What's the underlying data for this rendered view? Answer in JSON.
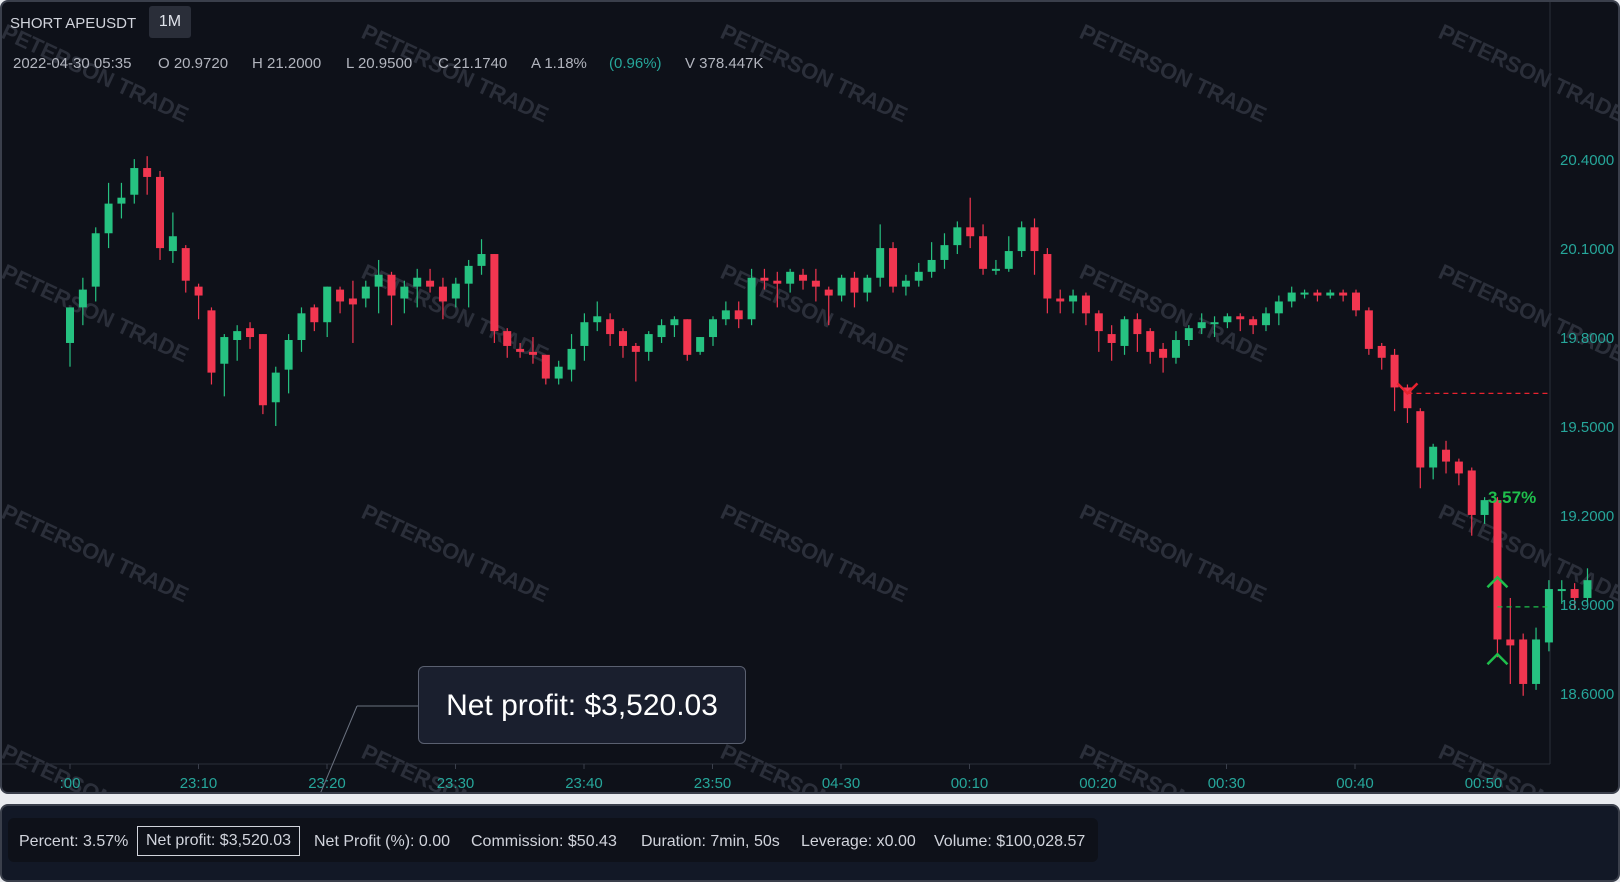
{
  "header": {
    "symbol": "SHORT APEUSDT",
    "timeframe": "1M"
  },
  "ohlc": {
    "date": "2022-04-30 05:35",
    "open": "O 20.9720",
    "high": "H 21.2000",
    "low": "L 20.9500",
    "close": "C 21.1740",
    "amplitude": "A 1.18%",
    "change": "(0.96%)",
    "volume": "V 378.447K"
  },
  "watermark": "PETERSON TRADE",
  "tooltip": {
    "label": "Net profit: $3,520.03"
  },
  "trade": {
    "entry_price": 19.61,
    "exit_price": 18.89,
    "profit_label": "3.57%",
    "entry_index": 104,
    "exit_index": 111
  },
  "stats": {
    "percent": "Percent: 3.57%",
    "net_profit": "Net profit: $3,520.03",
    "net_profit_pct": "Net Profit (%): 0.00",
    "commission": "Commission: $50.43",
    "duration": "Duration: 7min, 50s",
    "leverage": "Leverage: x0.00",
    "volume": "Volume: $100,028.57"
  },
  "colors": {
    "up": "#26c281",
    "down": "#f23650",
    "axis_text": "#26a69a",
    "background": "#0e1119",
    "entry_marker": "#e8232f",
    "exit_marker": "#1fbf4c"
  },
  "chart_data": {
    "type": "candlestick",
    "title": "SHORT APEUSDT",
    "x_ticks": [
      ":00",
      "23:10",
      "23:20",
      "23:30",
      "23:40",
      "23:50",
      "04-30",
      "00:10",
      "00:20",
      "00:30",
      "00:40",
      "00:50"
    ],
    "y_ticks": [
      "20.4000",
      "20.1000",
      "19.8000",
      "19.5000",
      "19.2000",
      "18.9000",
      "18.6000"
    ],
    "y_tick_values": [
      20.4,
      20.1,
      19.8,
      19.5,
      19.2,
      18.9,
      18.6
    ],
    "ylim": [
      18.36,
      20.93
    ],
    "candles_ohlc": [
      [
        19.78,
        19.9,
        19.75,
        19.9,
        19.7
      ],
      [
        19.9,
        19.96,
        19.87,
        20.0,
        19.84
      ],
      [
        19.97,
        20.15,
        19.95,
        20.17,
        19.92
      ],
      [
        20.15,
        20.25,
        20.12,
        20.32,
        20.1
      ],
      [
        20.25,
        20.27,
        20.23,
        20.32,
        20.2
      ],
      [
        20.28,
        20.37,
        20.27,
        20.4,
        20.25
      ],
      [
        20.37,
        20.34,
        20.33,
        20.41,
        20.28
      ],
      [
        20.34,
        20.1,
        20.08,
        20.36,
        20.06
      ],
      [
        20.09,
        20.14,
        20.08,
        20.22,
        20.05
      ],
      [
        20.1,
        19.99,
        19.98,
        20.11,
        19.95
      ],
      [
        19.97,
        19.94,
        19.91,
        19.98,
        19.86
      ],
      [
        19.89,
        19.68,
        19.66,
        19.9,
        19.64
      ],
      [
        19.71,
        19.8,
        19.68,
        19.81,
        19.6
      ],
      [
        19.79,
        19.82,
        19.76,
        19.84,
        19.72
      ],
      [
        19.83,
        19.8,
        19.78,
        19.85,
        19.76
      ],
      [
        19.81,
        19.57,
        19.55,
        19.81,
        19.54
      ],
      [
        19.58,
        19.68,
        19.56,
        19.7,
        19.5
      ],
      [
        19.69,
        19.79,
        19.68,
        19.81,
        19.61
      ],
      [
        19.79,
        19.88,
        19.78,
        19.9,
        19.75
      ],
      [
        19.9,
        19.85,
        19.83,
        19.91,
        19.82
      ],
      [
        19.85,
        19.97,
        19.84,
        19.97,
        19.8
      ],
      [
        19.96,
        19.92,
        19.9,
        19.97,
        19.88
      ],
      [
        19.93,
        19.91,
        19.89,
        19.99,
        19.78
      ],
      [
        19.93,
        19.97,
        19.92,
        19.99,
        19.9
      ],
      [
        19.97,
        20.01,
        19.96,
        20.06,
        19.88
      ],
      [
        20.01,
        19.94,
        19.87,
        20.02,
        19.84
      ],
      [
        19.93,
        19.97,
        19.92,
        19.99,
        19.88
      ],
      [
        19.97,
        20.0,
        19.96,
        20.03,
        19.9
      ],
      [
        19.99,
        19.97,
        19.96,
        20.03,
        19.95
      ],
      [
        19.97,
        19.92,
        19.88,
        20.0,
        19.86
      ],
      [
        19.93,
        19.98,
        19.92,
        20.0,
        19.9
      ],
      [
        19.98,
        20.04,
        19.96,
        20.06,
        19.9
      ],
      [
        20.04,
        20.08,
        20.03,
        20.13,
        20.01
      ],
      [
        20.08,
        19.82,
        19.8,
        20.08,
        19.78
      ],
      [
        19.82,
        19.77,
        19.74,
        19.83,
        19.73
      ],
      [
        19.76,
        19.75,
        19.74,
        19.78,
        19.73
      ],
      [
        19.75,
        19.74,
        19.73,
        19.8,
        19.71
      ],
      [
        19.74,
        19.66,
        19.66,
        19.74,
        19.64
      ],
      [
        19.66,
        19.7,
        19.65,
        19.72,
        19.64
      ],
      [
        19.69,
        19.76,
        19.68,
        19.81,
        19.65
      ],
      [
        19.77,
        19.85,
        19.76,
        19.88,
        19.72
      ],
      [
        19.85,
        19.87,
        19.84,
        19.92,
        19.82
      ],
      [
        19.86,
        19.81,
        19.8,
        19.88,
        19.77
      ],
      [
        19.82,
        19.77,
        19.76,
        19.83,
        19.73
      ],
      [
        19.77,
        19.75,
        19.74,
        19.78,
        19.65
      ],
      [
        19.75,
        19.81,
        19.74,
        19.82,
        19.72
      ],
      [
        19.8,
        19.84,
        19.79,
        19.86,
        19.78
      ],
      [
        19.84,
        19.86,
        19.83,
        19.87,
        19.8
      ],
      [
        19.86,
        19.74,
        19.73,
        19.86,
        19.72
      ],
      [
        19.75,
        19.8,
        19.74,
        19.8,
        19.74
      ],
      [
        19.8,
        19.86,
        19.79,
        19.87,
        19.77
      ],
      [
        19.86,
        19.89,
        19.85,
        19.92,
        19.84
      ],
      [
        19.89,
        19.86,
        19.85,
        19.92,
        19.83
      ],
      [
        19.86,
        20.0,
        19.85,
        20.03,
        19.84
      ],
      [
        20.0,
        19.99,
        19.98,
        20.03,
        19.96
      ],
      [
        19.99,
        19.98,
        19.97,
        20.02,
        19.9
      ],
      [
        19.98,
        20.02,
        19.97,
        20.03,
        19.95
      ],
      [
        20.01,
        19.99,
        19.98,
        20.03,
        19.96
      ],
      [
        19.99,
        19.97,
        19.96,
        20.03,
        19.92
      ],
      [
        19.96,
        19.94,
        19.86,
        19.97,
        19.84
      ],
      [
        19.94,
        20.0,
        19.93,
        20.01,
        19.92
      ],
      [
        20.0,
        19.95,
        19.94,
        20.02,
        19.9
      ],
      [
        19.95,
        20.0,
        19.94,
        20.01,
        19.92
      ],
      [
        20.0,
        20.1,
        19.99,
        20.18,
        19.97
      ],
      [
        20.1,
        19.97,
        19.96,
        20.12,
        19.95
      ],
      [
        19.97,
        19.99,
        19.96,
        20.01,
        19.94
      ],
      [
        19.99,
        20.02,
        19.98,
        20.05,
        19.97
      ],
      [
        20.02,
        20.06,
        20.01,
        20.12,
        20.0
      ],
      [
        20.06,
        20.11,
        20.05,
        20.15,
        20.03
      ],
      [
        20.11,
        20.17,
        20.1,
        20.19,
        20.08
      ],
      [
        20.17,
        20.14,
        20.13,
        20.27,
        20.1
      ],
      [
        20.14,
        20.03,
        20.02,
        20.18,
        20.01
      ],
      [
        20.03,
        20.03,
        20.02,
        20.06,
        20.01
      ],
      [
        20.03,
        20.09,
        20.02,
        20.14,
        20.02
      ],
      [
        20.09,
        20.17,
        20.08,
        20.19,
        20.07
      ],
      [
        20.17,
        20.09,
        20.03,
        20.2,
        20.01
      ],
      [
        20.08,
        19.93,
        19.9,
        20.1,
        19.88
      ],
      [
        19.93,
        19.92,
        19.9,
        19.96,
        19.88
      ],
      [
        19.92,
        19.94,
        19.91,
        19.96,
        19.88
      ],
      [
        19.94,
        19.88,
        19.87,
        19.95,
        19.84
      ],
      [
        19.88,
        19.82,
        19.78,
        19.89,
        19.75
      ],
      [
        19.81,
        19.78,
        19.75,
        19.84,
        19.72
      ],
      [
        19.77,
        19.86,
        19.76,
        19.87,
        19.74
      ],
      [
        19.86,
        19.81,
        19.79,
        19.88,
        19.75
      ],
      [
        19.82,
        19.75,
        19.73,
        19.83,
        19.71
      ],
      [
        19.76,
        19.73,
        19.7,
        19.78,
        19.68
      ],
      [
        19.73,
        19.79,
        19.72,
        19.82,
        19.71
      ],
      [
        19.79,
        19.83,
        19.78,
        19.84,
        19.77
      ],
      [
        19.83,
        19.85,
        19.82,
        19.88,
        19.81
      ],
      [
        19.85,
        19.85,
        19.84,
        19.87,
        19.8
      ],
      [
        19.85,
        19.87,
        19.84,
        19.88,
        19.83
      ],
      [
        19.87,
        19.86,
        19.85,
        19.88,
        19.82
      ],
      [
        19.86,
        19.84,
        19.83,
        19.87,
        19.81
      ],
      [
        19.84,
        19.88,
        19.83,
        19.9,
        19.82
      ],
      [
        19.88,
        19.92,
        19.87,
        19.94,
        19.84
      ],
      [
        19.92,
        19.95,
        19.91,
        19.97,
        19.9
      ],
      [
        19.95,
        19.95,
        19.94,
        19.96,
        19.93
      ],
      [
        19.95,
        19.94,
        19.93,
        19.96,
        19.92
      ],
      [
        19.94,
        19.95,
        19.93,
        19.96,
        19.93
      ],
      [
        19.95,
        19.94,
        19.93,
        19.96,
        19.92
      ],
      [
        19.95,
        19.89,
        19.88,
        19.96,
        19.87
      ],
      [
        19.89,
        19.76,
        19.75,
        19.9,
        19.74
      ],
      [
        19.77,
        19.73,
        19.72,
        19.78,
        19.69
      ],
      [
        19.74,
        19.63,
        19.6,
        19.76,
        19.55
      ],
      [
        19.63,
        19.56,
        19.54,
        19.64,
        19.51
      ],
      [
        19.55,
        19.36,
        19.33,
        19.56,
        19.29
      ],
      [
        19.36,
        19.43,
        19.35,
        19.44,
        19.32
      ],
      [
        19.42,
        19.38,
        19.37,
        19.45,
        19.34
      ],
      [
        19.38,
        19.34,
        19.33,
        19.39,
        19.3
      ],
      [
        19.35,
        19.2,
        19.18,
        19.36,
        19.13
      ],
      [
        19.2,
        19.25,
        19.19,
        19.26,
        19.17
      ],
      [
        19.25,
        18.78,
        18.76,
        19.26,
        18.72
      ],
      [
        18.78,
        18.76,
        18.75,
        18.92,
        18.63
      ],
      [
        18.78,
        18.63,
        18.61,
        18.8,
        18.59
      ],
      [
        18.63,
        18.78,
        18.62,
        18.82,
        18.61
      ],
      [
        18.77,
        18.95,
        18.76,
        18.98,
        18.74
      ],
      [
        18.95,
        18.95,
        18.94,
        18.98,
        18.9
      ],
      [
        18.95,
        18.92,
        18.91,
        18.97,
        18.88
      ],
      [
        18.92,
        18.98,
        18.91,
        19.02,
        18.9
      ]
    ]
  }
}
